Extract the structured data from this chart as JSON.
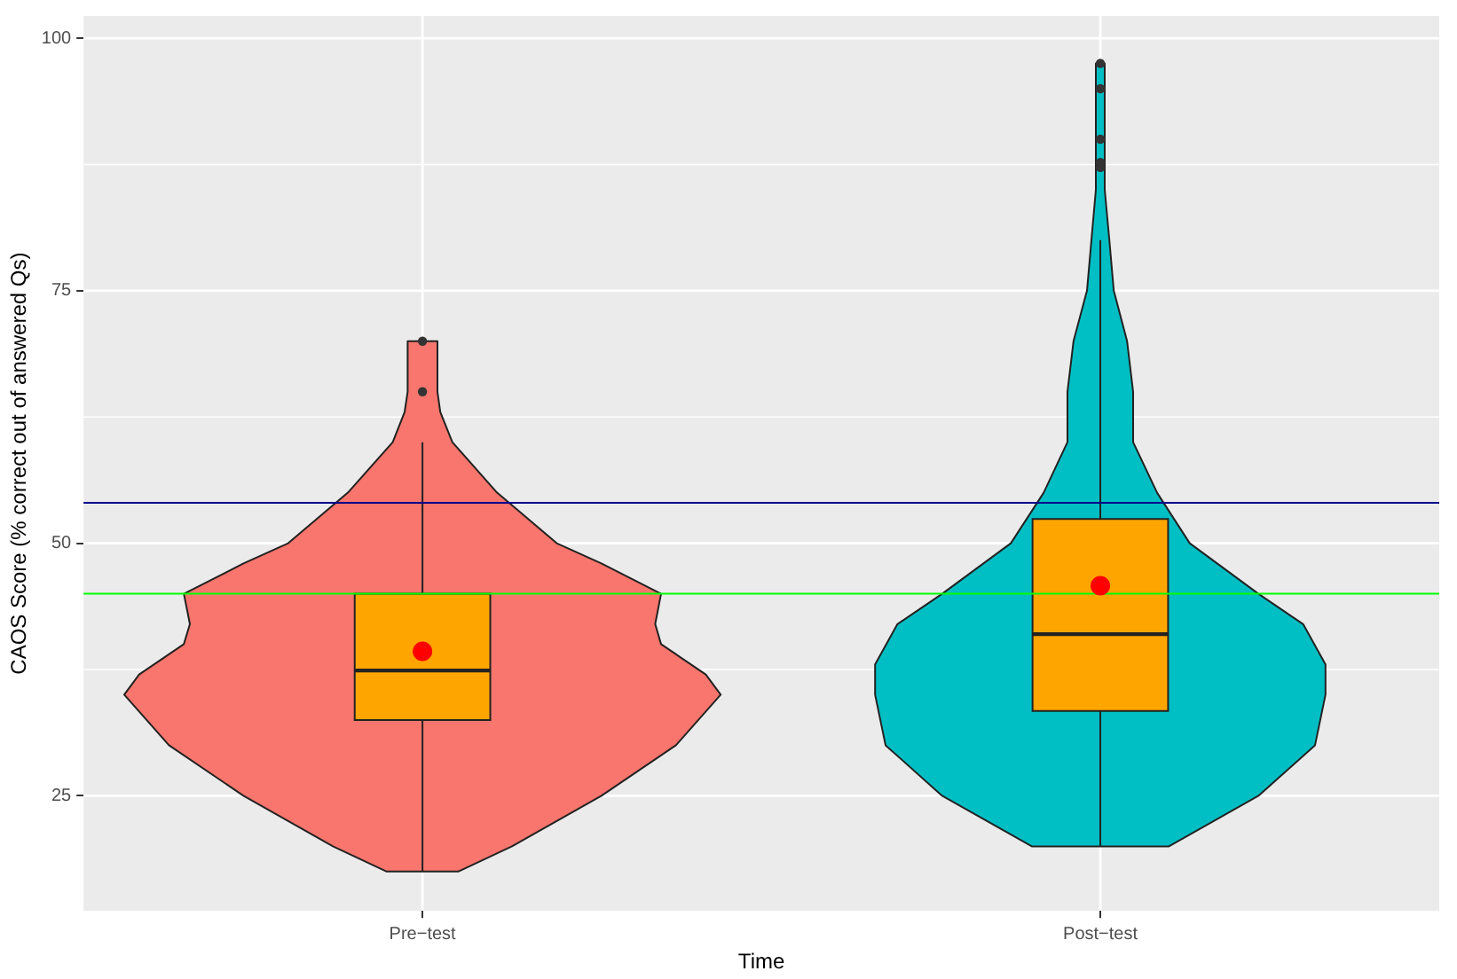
{
  "chart_data": {
    "type": "box",
    "xlabel": "Time",
    "ylabel": "CAOS Score (% correct out of answered Qs)",
    "categories": [
      "Pre−test",
      "Post−test"
    ],
    "ylim": [
      13.6,
      102.2
    ],
    "yticks": [
      25,
      {
        "value": 37.5,
        "label": null
      },
      50,
      {
        "value": 62.5,
        "label": null
      },
      75,
      {
        "value": 87.5,
        "label": null
      },
      100
    ],
    "grid": true,
    "series": [
      {
        "type": "box",
        "color": "#ffa500",
        "boxes": [
          {
            "low": 17.5,
            "q1": 32.5,
            "median": 37.4,
            "q3": 45,
            "high": 60,
            "outliers": [
              65,
              70
            ]
          },
          {
            "low": 20,
            "q1": 33.4,
            "median": 41,
            "q3": 52.4,
            "high": 80,
            "outliers": [
              87.2,
              87.7,
              90,
              95,
              97.5
            ]
          }
        ]
      },
      {
        "type": "scatter",
        "color": "#ff0000",
        "x": [
          "Pre−test",
          "Post−test"
        ],
        "values": [
          39.3,
          45.8
        ]
      }
    ],
    "ref_lines": [
      {
        "axis": "y",
        "value": 54,
        "color": "#00008b"
      },
      {
        "axis": "y",
        "value": 45,
        "color": "#00ff00"
      }
    ]
  }
}
